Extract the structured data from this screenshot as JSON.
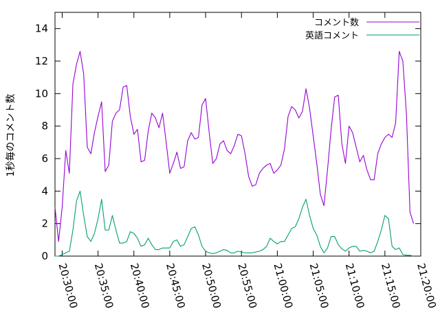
{
  "chart_data": {
    "type": "line",
    "title": "",
    "xlabel": "",
    "ylabel": "1秒毎のコメント数",
    "xlim": [
      "20:29:00",
      "21:20:00"
    ],
    "ylim": [
      0,
      15
    ],
    "x_ticks": [
      "20:30:00",
      "20:35:00",
      "20:40:00",
      "20:45:00",
      "20:50:00",
      "20:55:00",
      "21:00:00",
      "21:05:00",
      "21:10:00",
      "21:15:00",
      "21:20:00"
    ],
    "y_ticks": [
      0,
      2,
      4,
      6,
      8,
      10,
      12,
      14
    ],
    "grid": false,
    "legend_position": "top-right",
    "series": [
      {
        "name": "コメント数",
        "color": "#9400d3",
        "points": [
          [
            "20:29:00",
            3.0
          ],
          [
            "20:29:30",
            0.9
          ],
          [
            "20:30:00",
            3.0
          ],
          [
            "20:30:30",
            6.5
          ],
          [
            "20:31:00",
            5.1
          ],
          [
            "20:31:30",
            10.6
          ],
          [
            "20:32:00",
            11.8
          ],
          [
            "20:32:30",
            12.6
          ],
          [
            "20:33:00",
            11.2
          ],
          [
            "20:33:30",
            6.7
          ],
          [
            "20:34:00",
            6.3
          ],
          [
            "20:34:30",
            7.6
          ],
          [
            "20:35:00",
            8.6
          ],
          [
            "20:35:30",
            9.5
          ],
          [
            "20:36:00",
            5.2
          ],
          [
            "20:36:30",
            5.6
          ],
          [
            "20:37:00",
            8.3
          ],
          [
            "20:37:30",
            8.8
          ],
          [
            "20:38:00",
            9.0
          ],
          [
            "20:38:30",
            10.4
          ],
          [
            "20:39:00",
            10.5
          ],
          [
            "20:39:30",
            8.6
          ],
          [
            "20:40:00",
            7.5
          ],
          [
            "20:40:30",
            7.8
          ],
          [
            "20:41:00",
            5.8
          ],
          [
            "20:41:30",
            5.9
          ],
          [
            "20:42:00",
            7.7
          ],
          [
            "20:42:30",
            8.8
          ],
          [
            "20:43:00",
            8.5
          ],
          [
            "20:43:30",
            7.9
          ],
          [
            "20:44:00",
            8.8
          ],
          [
            "20:44:30",
            7.0
          ],
          [
            "20:45:00",
            5.1
          ],
          [
            "20:45:30",
            5.7
          ],
          [
            "20:46:00",
            6.4
          ],
          [
            "20:46:30",
            5.4
          ],
          [
            "20:47:00",
            5.5
          ],
          [
            "20:47:30",
            7.1
          ],
          [
            "20:48:00",
            7.6
          ],
          [
            "20:48:30",
            7.2
          ],
          [
            "20:49:00",
            7.3
          ],
          [
            "20:49:30",
            9.3
          ],
          [
            "20:50:00",
            9.7
          ],
          [
            "20:50:30",
            7.6
          ],
          [
            "20:51:00",
            5.7
          ],
          [
            "20:51:30",
            6.0
          ],
          [
            "20:52:00",
            6.9
          ],
          [
            "20:52:30",
            7.1
          ],
          [
            "20:53:00",
            6.5
          ],
          [
            "20:53:30",
            6.3
          ],
          [
            "20:54:00",
            6.8
          ],
          [
            "20:54:30",
            7.5
          ],
          [
            "20:55:00",
            7.4
          ],
          [
            "20:55:30",
            6.3
          ],
          [
            "20:56:00",
            4.9
          ],
          [
            "20:56:30",
            4.3
          ],
          [
            "20:57:00",
            4.4
          ],
          [
            "20:57:30",
            5.1
          ],
          [
            "20:58:00",
            5.4
          ],
          [
            "20:58:30",
            5.6
          ],
          [
            "20:59:00",
            5.7
          ],
          [
            "20:59:30",
            5.1
          ],
          [
            "21:00:00",
            5.3
          ],
          [
            "21:00:30",
            5.6
          ],
          [
            "21:01:00",
            6.6
          ],
          [
            "21:01:30",
            8.6
          ],
          [
            "21:02:00",
            9.2
          ],
          [
            "21:02:30",
            9.0
          ],
          [
            "21:03:00",
            8.5
          ],
          [
            "21:03:30",
            8.9
          ],
          [
            "21:04:00",
            10.3
          ],
          [
            "21:04:30",
            9.1
          ],
          [
            "21:05:00",
            7.4
          ],
          [
            "21:05:30",
            5.7
          ],
          [
            "21:06:00",
            3.8
          ],
          [
            "21:06:30",
            3.1
          ],
          [
            "21:07:00",
            5.3
          ],
          [
            "21:07:30",
            7.8
          ],
          [
            "21:08:00",
            9.8
          ],
          [
            "21:08:30",
            9.9
          ],
          [
            "21:09:00",
            6.9
          ],
          [
            "21:09:30",
            5.7
          ],
          [
            "21:10:00",
            8.0
          ],
          [
            "21:10:30",
            7.6
          ],
          [
            "21:11:00",
            6.7
          ],
          [
            "21:11:30",
            5.8
          ],
          [
            "21:12:00",
            6.2
          ],
          [
            "21:12:30",
            5.3
          ],
          [
            "21:13:00",
            4.7
          ],
          [
            "21:13:30",
            4.7
          ],
          [
            "21:14:00",
            6.3
          ],
          [
            "21:14:30",
            6.9
          ],
          [
            "21:15:00",
            7.3
          ],
          [
            "21:15:30",
            7.5
          ],
          [
            "21:16:00",
            7.3
          ],
          [
            "21:16:30",
            8.2
          ],
          [
            "21:17:00",
            12.6
          ],
          [
            "21:17:30",
            12.0
          ],
          [
            "21:18:00",
            8.8
          ],
          [
            "21:18:30",
            2.7
          ],
          [
            "21:19:00",
            2.0
          ]
        ]
      },
      {
        "name": "英語コメント",
        "color": "#009e73",
        "points": [
          [
            "20:29:00",
            0.0
          ],
          [
            "20:29:30",
            0.0
          ],
          [
            "20:30:00",
            0.1
          ],
          [
            "20:30:30",
            0.2
          ],
          [
            "20:31:00",
            0.3
          ],
          [
            "20:31:30",
            1.6
          ],
          [
            "20:32:00",
            3.4
          ],
          [
            "20:32:30",
            4.0
          ],
          [
            "20:33:00",
            2.5
          ],
          [
            "20:33:30",
            1.2
          ],
          [
            "20:34:00",
            0.9
          ],
          [
            "20:34:30",
            1.4
          ],
          [
            "20:35:00",
            2.3
          ],
          [
            "20:35:30",
            3.5
          ],
          [
            "20:36:00",
            1.6
          ],
          [
            "20:36:30",
            1.6
          ],
          [
            "20:37:00",
            2.5
          ],
          [
            "20:37:30",
            1.6
          ],
          [
            "20:38:00",
            0.8
          ],
          [
            "20:38:30",
            0.8
          ],
          [
            "20:39:00",
            0.9
          ],
          [
            "20:39:30",
            1.5
          ],
          [
            "20:40:00",
            1.4
          ],
          [
            "20:40:30",
            1.1
          ],
          [
            "20:41:00",
            0.6
          ],
          [
            "20:41:30",
            0.7
          ],
          [
            "20:42:00",
            1.1
          ],
          [
            "20:42:30",
            0.7
          ],
          [
            "20:43:00",
            0.4
          ],
          [
            "20:43:30",
            0.4
          ],
          [
            "20:44:00",
            0.5
          ],
          [
            "20:44:30",
            0.5
          ],
          [
            "20:45:00",
            0.5
          ],
          [
            "20:45:30",
            0.9
          ],
          [
            "20:46:00",
            1.0
          ],
          [
            "20:46:30",
            0.6
          ],
          [
            "20:47:00",
            0.7
          ],
          [
            "20:47:30",
            1.2
          ],
          [
            "20:48:00",
            1.7
          ],
          [
            "20:48:30",
            1.8
          ],
          [
            "20:49:00",
            1.3
          ],
          [
            "20:49:30",
            0.6
          ],
          [
            "20:50:00",
            0.3
          ],
          [
            "20:50:30",
            0.2
          ],
          [
            "20:51:00",
            0.15
          ],
          [
            "20:51:30",
            0.2
          ],
          [
            "20:52:00",
            0.3
          ],
          [
            "20:52:30",
            0.4
          ],
          [
            "20:53:00",
            0.35
          ],
          [
            "20:53:30",
            0.2
          ],
          [
            "20:54:00",
            0.2
          ],
          [
            "20:54:30",
            0.3
          ],
          [
            "20:55:00",
            0.25
          ],
          [
            "20:55:30",
            0.2
          ],
          [
            "20:56:00",
            0.2
          ],
          [
            "20:56:30",
            0.2
          ],
          [
            "20:57:00",
            0.25
          ],
          [
            "20:57:30",
            0.3
          ],
          [
            "20:58:00",
            0.4
          ],
          [
            "20:58:30",
            0.6
          ],
          [
            "20:59:00",
            1.1
          ],
          [
            "20:59:30",
            0.9
          ],
          [
            "21:00:00",
            0.75
          ],
          [
            "21:00:30",
            0.9
          ],
          [
            "21:01:00",
            0.9
          ],
          [
            "21:01:30",
            1.3
          ],
          [
            "21:02:00",
            1.7
          ],
          [
            "21:02:30",
            1.8
          ],
          [
            "21:03:00",
            2.3
          ],
          [
            "21:03:30",
            3.0
          ],
          [
            "21:04:00",
            3.5
          ],
          [
            "21:04:30",
            2.5
          ],
          [
            "21:05:00",
            1.7
          ],
          [
            "21:05:30",
            1.3
          ],
          [
            "21:06:00",
            0.6
          ],
          [
            "21:06:30",
            0.2
          ],
          [
            "21:07:00",
            0.5
          ],
          [
            "21:07:30",
            1.2
          ],
          [
            "21:08:00",
            1.2
          ],
          [
            "21:08:30",
            0.7
          ],
          [
            "21:09:00",
            0.45
          ],
          [
            "21:09:30",
            0.3
          ],
          [
            "21:10:00",
            0.5
          ],
          [
            "21:10:30",
            0.6
          ],
          [
            "21:11:00",
            0.6
          ],
          [
            "21:11:30",
            0.3
          ],
          [
            "21:12:00",
            0.35
          ],
          [
            "21:12:30",
            0.3
          ],
          [
            "21:13:00",
            0.2
          ],
          [
            "21:13:30",
            0.3
          ],
          [
            "21:14:00",
            0.9
          ],
          [
            "21:14:30",
            1.6
          ],
          [
            "21:15:00",
            2.5
          ],
          [
            "21:15:30",
            2.3
          ],
          [
            "21:16:00",
            0.6
          ],
          [
            "21:16:30",
            0.4
          ],
          [
            "21:17:00",
            0.5
          ],
          [
            "21:17:30",
            0.1
          ],
          [
            "21:18:00",
            0.05
          ],
          [
            "21:18:30",
            0.05
          ],
          [
            "21:19:00",
            0.0
          ]
        ]
      }
    ]
  }
}
